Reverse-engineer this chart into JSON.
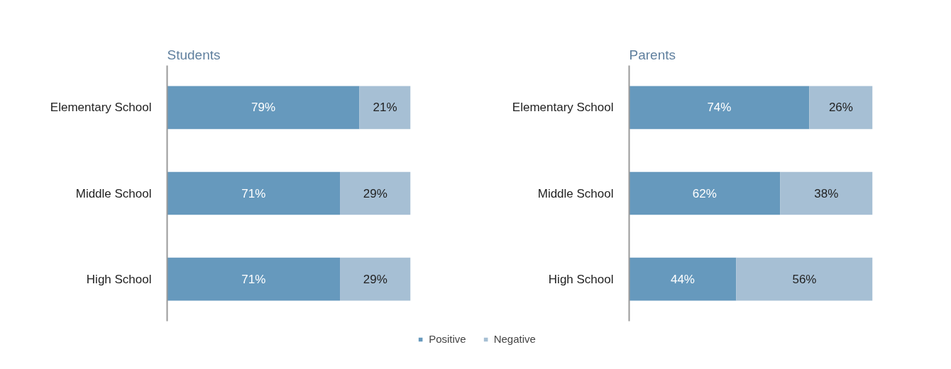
{
  "chart_data": [
    {
      "type": "bar",
      "orientation": "horizontal",
      "stacked": true,
      "title": "Students",
      "categories": [
        "Elementary School",
        "Middle School",
        "High School"
      ],
      "grid": false,
      "legend": "bottom",
      "series": [
        {
          "name": "Positive",
          "color": "#6699bd",
          "values": [
            79,
            71,
            71
          ],
          "value_labels": [
            "79%",
            "71%",
            "71%"
          ]
        },
        {
          "name": "Negative",
          "color": "#a6bfd4",
          "values": [
            21,
            29,
            29
          ],
          "value_labels": [
            "21%",
            "29%",
            "29%"
          ]
        }
      ]
    },
    {
      "type": "bar",
      "orientation": "horizontal",
      "stacked": true,
      "title": "Parents",
      "categories": [
        "Elementary School",
        "Middle School",
        "High School"
      ],
      "grid": false,
      "series": [
        {
          "color": "#6699bd",
          "values": [
            74,
            62,
            44
          ],
          "value_labels": [
            "74%",
            "62%",
            "44%"
          ]
        },
        {
          "color": "#a6bfd4",
          "values": [
            26,
            38,
            56
          ],
          "value_labels": [
            "26%",
            "38%",
            "56%"
          ]
        }
      ]
    }
  ]
}
